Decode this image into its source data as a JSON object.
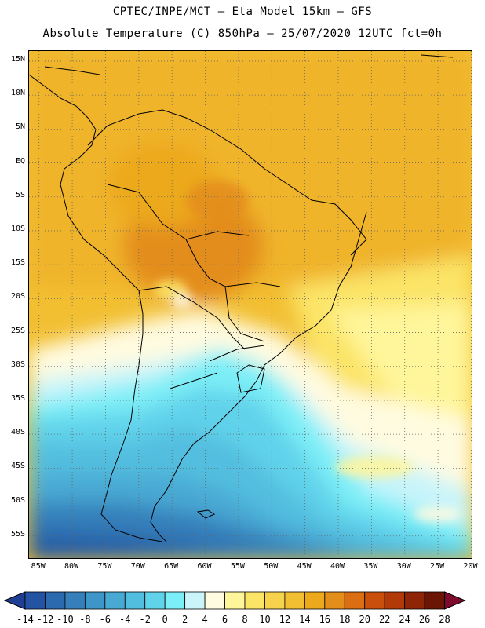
{
  "header": {
    "line1": "CPTEC/INPE/MCT –  Eta Model 15km – GFS",
    "line2": "Absolute Temperature (C) 850hPa – 25/07/2020 12UTC fct=0h"
  },
  "axes": {
    "lat_labels": [
      "15N",
      "10N",
      "5N",
      "EQ",
      "5S",
      "10S",
      "15S",
      "20S",
      "25S",
      "30S",
      "35S",
      "40S",
      "45S",
      "50S",
      "55S"
    ],
    "lon_labels": [
      "85W",
      "80W",
      "75W",
      "70W",
      "65W",
      "60W",
      "55W",
      "50W",
      "45W",
      "40W",
      "35W",
      "30W",
      "25W",
      "20W"
    ],
    "lat_range": [
      -58.5,
      16.5
    ],
    "lon_range": [
      -86.5,
      -19.7
    ]
  },
  "colorbar": {
    "labels": [
      "-14",
      "-12",
      "-10",
      "-8",
      "-6",
      "-4",
      "-2",
      "0",
      "2",
      "4",
      "6",
      "8",
      "10",
      "12",
      "14",
      "16",
      "18",
      "20",
      "22",
      "24",
      "26",
      "28"
    ],
    "colors": [
      "#1f3f95",
      "#2453a3",
      "#2b6aae",
      "#3580bb",
      "#3e95c7",
      "#48a9d3",
      "#52bedf",
      "#60d2ea",
      "#7beef7",
      "#c8f4fa",
      "#fffbe0",
      "#fff59a",
      "#fbe466",
      "#f7d24d",
      "#f2bf32",
      "#eca91b",
      "#e38d1a",
      "#db6d12",
      "#c9500c",
      "#b23a09",
      "#8f2507",
      "#6b1605",
      "#7e0a2e"
    ]
  },
  "chart_data": {
    "type": "heatmap",
    "title": "Absolute Temperature (C) 850hPa – 25/07/2020 12UTC fct=0h",
    "variable": "Absolute Temperature (C) 850hPa",
    "units": "C",
    "valid_time": "25/07/2020 12UTC",
    "forecast": "fct=0h",
    "value_range": [
      -14,
      28
    ],
    "grid": true,
    "regions": [
      {
        "name": "Northern South America / Amazon",
        "approx_value": 18
      },
      {
        "name": "Bolivia / Mato Grosso",
        "approx_value": 20
      },
      {
        "name": "Tropical Atlantic",
        "approx_value": 17
      },
      {
        "name": "Southern Brazil coast",
        "approx_value": 11
      },
      {
        "name": "Northern Argentina",
        "approx_value": 3
      },
      {
        "name": "Central Argentina / Patagonia",
        "approx_value": -2
      },
      {
        "name": "Drake Passage / far south",
        "approx_value": -12
      },
      {
        "name": "South Atlantic 40S-55S",
        "approx_value": 5
      }
    ]
  }
}
